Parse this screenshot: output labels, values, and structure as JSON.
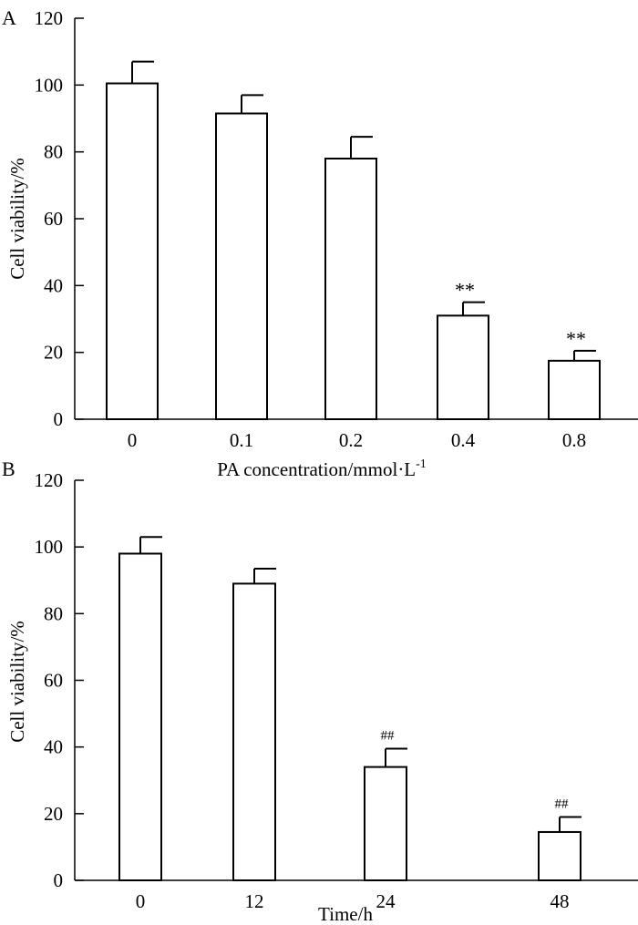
{
  "chart_data": [
    {
      "panel_label": "A",
      "type": "bar",
      "categories": [
        "0",
        "0.1",
        "0.2",
        "0.4",
        "0.8"
      ],
      "values": [
        100.5,
        91.5,
        78,
        31,
        17.5
      ],
      "error_upper": [
        107,
        97,
        84.5,
        35,
        20.5
      ],
      "significance": [
        "",
        "",
        "",
        "**",
        "**"
      ],
      "xlabel_main": "PA concentration/mmol·L",
      "xlabel_superscript": "-1",
      "ylabel": "Cell viability/%",
      "ylim": [
        0,
        120
      ],
      "yticks": [
        "0",
        "20",
        "40",
        "60",
        "80",
        "100",
        "120"
      ],
      "bar_fill": "#ffffff",
      "bar_stroke": "#000000"
    },
    {
      "panel_label": "B",
      "type": "bar",
      "categories": [
        "0",
        "12",
        "24",
        "48"
      ],
      "values": [
        98,
        89,
        34,
        14.5
      ],
      "error_upper": [
        103,
        93.5,
        39.5,
        19
      ],
      "significance": [
        "",
        "",
        "##",
        "##"
      ],
      "xlabel_main": "Time/h",
      "xlabel_superscript": "",
      "ylabel": "Cell viability/%",
      "ylim": [
        0,
        120
      ],
      "yticks": [
        "0",
        "20",
        "40",
        "60",
        "80",
        "100",
        "120"
      ],
      "bar_fill": "#ffffff",
      "bar_stroke": "#000000"
    }
  ]
}
